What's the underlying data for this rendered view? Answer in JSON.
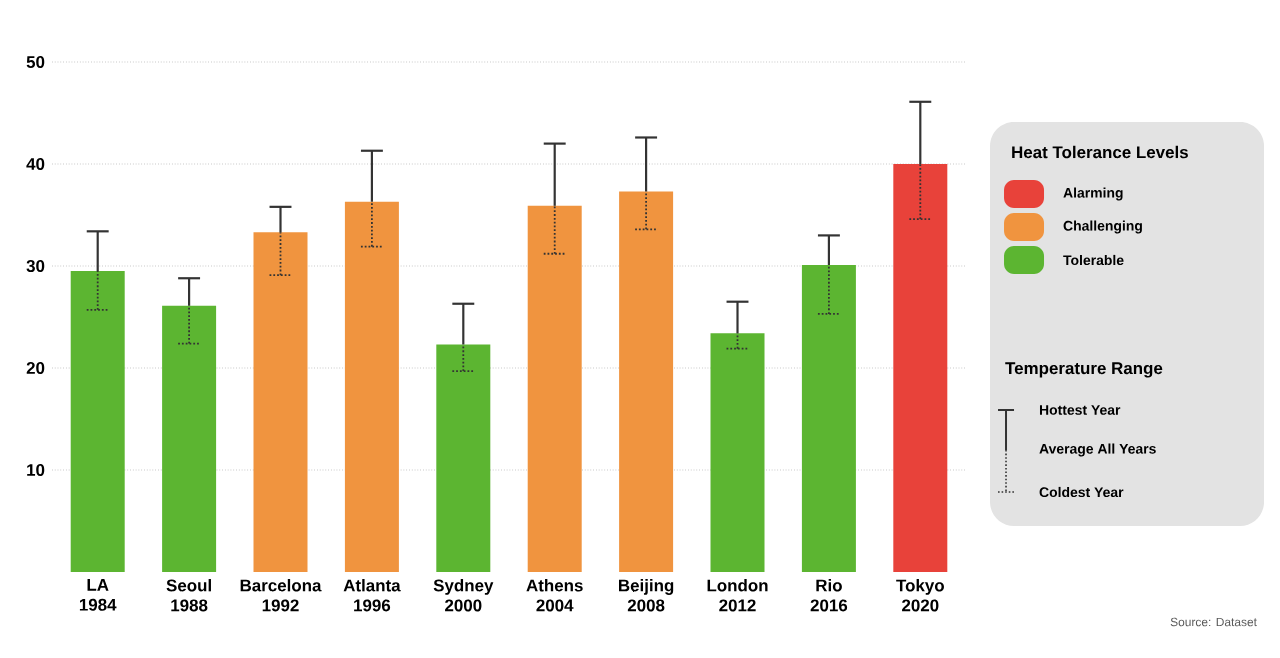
{
  "chart_data": {
    "type": "bar",
    "categories": [
      "LA 1984",
      "Seoul 1988",
      "Barcelona 1992",
      "Atlanta 1996",
      "Sydney 2000",
      "Athens 2004",
      "Beijing 2008",
      "London 2012",
      "Rio 2016",
      "Tokyo 2020"
    ],
    "series": [
      {
        "name": "Alarming",
        "color": "#e8423a",
        "values": [
          null,
          null,
          null,
          null,
          null,
          null,
          null,
          null,
          null,
          40.0
        ],
        "errors": [
          null,
          null,
          null,
          null,
          null,
          null,
          null,
          null,
          null,
          [
            34.6,
            46.1
          ]
        ]
      },
      {
        "name": "Challenging",
        "color": "#f0943f",
        "values": [
          null,
          null,
          33.3,
          36.3,
          null,
          35.9,
          37.3,
          null,
          null,
          null
        ],
        "errors": [
          null,
          null,
          [
            29.1,
            35.8
          ],
          [
            31.9,
            41.3
          ],
          null,
          [
            31.2,
            42.0
          ],
          [
            33.6,
            42.6
          ],
          null,
          null,
          null
        ]
      },
      {
        "name": "Tolerable",
        "color": "#5cb531",
        "values": [
          29.5,
          26.1,
          null,
          null,
          22.3,
          null,
          null,
          23.4,
          30.1,
          null
        ],
        "errors": [
          [
            25.7,
            33.4
          ],
          [
            22.4,
            28.8
          ],
          null,
          null,
          [
            19.7,
            26.3
          ],
          null,
          null,
          [
            21.9,
            26.5
          ],
          [
            25.3,
            33.0
          ],
          null
        ]
      }
    ],
    "ylim": [
      0,
      50
    ],
    "yticks": [
      10,
      20,
      30,
      40,
      50
    ],
    "grid": "y",
    "legend": "right",
    "legend_title": "Heat Tolerance Levels",
    "annotations": [
      "Temperature Range",
      "Hottest Year",
      "Average All Years",
      "Coldest Year",
      "Source: Dataset"
    ]
  }
}
